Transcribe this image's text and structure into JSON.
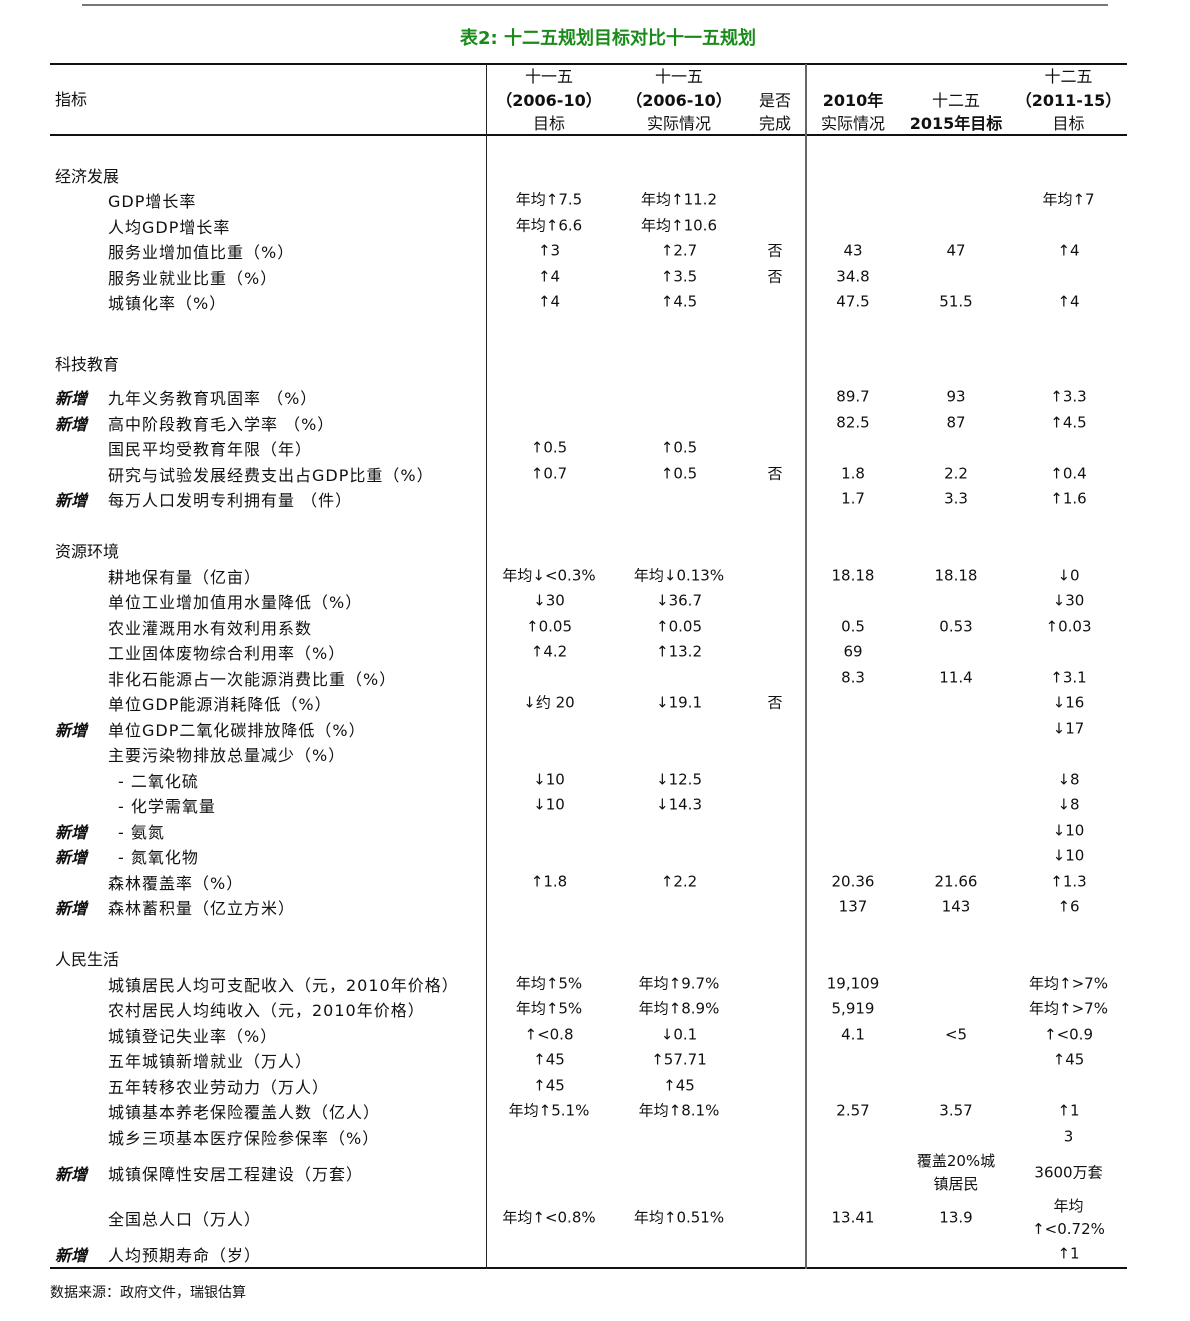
{
  "title": "表2: 十二五规划目标对比十一五规划",
  "headers": {
    "indicator": "指标",
    "c1": [
      "十一五",
      "（2006-10）",
      "目标"
    ],
    "c2": [
      "十一五",
      "（2006-10）",
      "实际情况"
    ],
    "c3": [
      "",
      "是否",
      "完成"
    ],
    "c4": [
      "",
      "2010年",
      "实际情况"
    ],
    "c5": [
      "",
      "十二五",
      "2015年目标"
    ],
    "c6": [
      "十二五",
      "（2011-15）",
      "目标"
    ]
  },
  "rows": [
    {
      "section": "经济发展"
    },
    {
      "label": "GDP增长率",
      "c1": "年均↑7.5",
      "c2": "年均↑11.2",
      "c3": "",
      "c4": "",
      "c5": "",
      "c6": "年均↑7"
    },
    {
      "label": "人均GDP增长率",
      "c1": "年均↑6.6",
      "c2": "年均↑10.6",
      "c3": "",
      "c4": "",
      "c5": "",
      "c6": ""
    },
    {
      "label": "服务业增加值比重（%）",
      "c1": "↑3",
      "c2": "↑2.7",
      "c3": "否",
      "c4": "43",
      "c5": "47",
      "c6": "↑4"
    },
    {
      "label": "服务业就业比重（%）",
      "c1": "↑4",
      "c2": "↑3.5",
      "c3": "否",
      "c4": "34.8",
      "c5": "",
      "c6": ""
    },
    {
      "label": "城镇化率（%）",
      "c1": "↑4",
      "c2": "↑4.5",
      "c3": "",
      "c4": "47.5",
      "c5": "51.5",
      "c6": "↑4"
    },
    {
      "section": "科技教育"
    },
    {
      "flag": "新增",
      "label": "九年义务教育巩固率 （%）",
      "c1": "",
      "c2": "",
      "c3": "",
      "c4": "89.7",
      "c5": "93",
      "c6": "↑3.3"
    },
    {
      "flag": "新增",
      "label": "高中阶段教育毛入学率 （%）",
      "c1": "",
      "c2": "",
      "c3": "",
      "c4": "82.5",
      "c5": "87",
      "c6": "↑4.5"
    },
    {
      "label": "国民平均受教育年限（年）",
      "c1": "↑0.5",
      "c2": "↑0.5",
      "c3": "",
      "c4": "",
      "c5": "",
      "c6": ""
    },
    {
      "label": "研究与试验发展经费支出占GDP比重（%）",
      "c1": "↑0.7",
      "c2": "↑0.5",
      "c3": "否",
      "c4": "1.8",
      "c5": "2.2",
      "c6": "↑0.4"
    },
    {
      "flag": "新增",
      "label": "每万人口发明专利拥有量 （件）",
      "c1": "",
      "c2": "",
      "c3": "",
      "c4": "1.7",
      "c5": "3.3",
      "c6": "↑1.6"
    },
    {
      "section": "资源环境"
    },
    {
      "label": "耕地保有量（亿亩）",
      "c1": "年均↓<0.3%",
      "c2": "年均↓0.13%",
      "c3": "",
      "c4": "18.18",
      "c5": "18.18",
      "c6": "↓0"
    },
    {
      "label": "单位工业增加值用水量降低（%）",
      "c1": "↓30",
      "c2": "↓36.7",
      "c3": "",
      "c4": "",
      "c5": "",
      "c6": "↓30"
    },
    {
      "label": "农业灌溉用水有效利用系数",
      "c1": "↑0.05",
      "c2": "↑0.05",
      "c3": "",
      "c4": "0.5",
      "c5": "0.53",
      "c6": "↑0.03"
    },
    {
      "label": "工业固体废物综合利用率（%）",
      "c1": "↑4.2",
      "c2": "↑13.2",
      "c3": "",
      "c4": "69",
      "c5": "",
      "c6": ""
    },
    {
      "label": "非化石能源占一次能源消费比重（%）",
      "c1": "",
      "c2": "",
      "c3": "",
      "c4": "8.3",
      "c5": "11.4",
      "c6": "↑3.1"
    },
    {
      "label": "单位GDP能源消耗降低（%）",
      "c1": "↓约 20",
      "c2": "↓19.1",
      "c3": "否",
      "c4": "",
      "c5": "",
      "c6": "↓16"
    },
    {
      "flag": "新增",
      "label": "单位GDP二氧化碳排放降低（%）",
      "c1": "",
      "c2": "",
      "c3": "",
      "c4": "",
      "c5": "",
      "c6": "↓17"
    },
    {
      "label": "主要污染物排放总量减少（%）",
      "c1": "",
      "c2": "",
      "c3": "",
      "c4": "",
      "c5": "",
      "c6": ""
    },
    {
      "sub": true,
      "label": "- 二氧化硫",
      "c1": "↓10",
      "c2": "↓12.5",
      "c3": "",
      "c4": "",
      "c5": "",
      "c6": "↓8"
    },
    {
      "sub": true,
      "label": "- 化学需氧量",
      "c1": "↓10",
      "c2": "↓14.3",
      "c3": "",
      "c4": "",
      "c5": "",
      "c6": "↓8"
    },
    {
      "flag": "新增",
      "sub": true,
      "label": "- 氨氮",
      "c1": "",
      "c2": "",
      "c3": "",
      "c4": "",
      "c5": "",
      "c6": "↓10"
    },
    {
      "flag": "新增",
      "sub": true,
      "label": "- 氮氧化物",
      "c1": "",
      "c2": "",
      "c3": "",
      "c4": "",
      "c5": "",
      "c6": "↓10"
    },
    {
      "label": "森林覆盖率（%）",
      "c1": "↑1.8",
      "c2": "↑2.2",
      "c3": "",
      "c4": "20.36",
      "c5": "21.66",
      "c6": "↑1.3"
    },
    {
      "flag": "新增",
      "label": "森林蓄积量（亿立方米）",
      "c1": "",
      "c2": "",
      "c3": "",
      "c4": "137",
      "c5": "143",
      "c6": "↑6"
    },
    {
      "section": "人民生活"
    },
    {
      "label": "城镇居民人均可支配收入（元，2010年价格）",
      "c1": "年均↑5%",
      "c2": "年均↑9.7%",
      "c3": "",
      "c4": "19,109",
      "c5": "",
      "c6": "年均↑>7%"
    },
    {
      "label": "农村居民人均纯收入（元，2010年价格）",
      "c1": "年均↑5%",
      "c2": "年均↑8.9%",
      "c3": "",
      "c4": "5,919",
      "c5": "",
      "c6": "年均↑>7%"
    },
    {
      "label": "城镇登记失业率（%）",
      "c1": "↑<0.8",
      "c2": "↓0.1",
      "c3": "",
      "c4": "4.1",
      "c5": "<5",
      "c6": "↑<0.9"
    },
    {
      "label": "五年城镇新增就业（万人）",
      "c1": "↑45",
      "c2": "↑57.71",
      "c3": "",
      "c4": "",
      "c5": "",
      "c6": "↑45"
    },
    {
      "label": "五年转移农业劳动力（万人）",
      "c1": "↑45",
      "c2": "↑45",
      "c3": "",
      "c4": "",
      "c5": "",
      "c6": ""
    },
    {
      "label": "城镇基本养老保险覆盖人数（亿人）",
      "c1": "年均↑5.1%",
      "c2": "年均↑8.1%",
      "c3": "",
      "c4": "2.57",
      "c5": "3.57",
      "c6": "↑1"
    },
    {
      "label": "城乡三项基本医疗保险参保率（%）",
      "c1": "",
      "c2": "",
      "c3": "",
      "c4": "",
      "c5": "",
      "c6": "3"
    },
    {
      "flag": "新增",
      "label": "城镇保障性安居工程建设（万套）",
      "c1": "",
      "c2": "",
      "c3": "",
      "c4": "",
      "c5": "覆盖20%城镇居民",
      "c6": "3600万套"
    },
    {
      "label": "全国总人口（万人）",
      "c1": "年均↑<0.8%",
      "c2": "年均↑0.51%",
      "c3": "",
      "c4": "13.41",
      "c5": "13.9",
      "c6": "年均↑<0.72%"
    },
    {
      "flag": "新增",
      "label": "人均预期寿命（岁）",
      "c1": "",
      "c2": "",
      "c3": "",
      "c4": "",
      "c5": "",
      "c6": "↑1"
    }
  ],
  "source": "数据来源：政府文件，瑞银估算"
}
